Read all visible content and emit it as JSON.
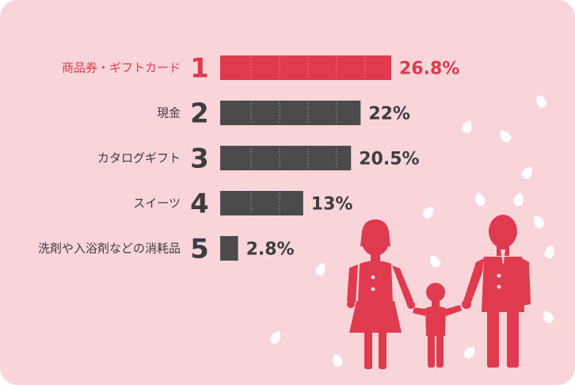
{
  "chart_data": {
    "type": "bar",
    "orientation": "horizontal",
    "categories": [
      "商品券・ギフトカード",
      "現金",
      "カタログギフト",
      "スイーツ",
      "洗剤や入浴剤などの消耗品"
    ],
    "ranks": [
      "1",
      "2",
      "3",
      "4",
      "5"
    ],
    "values": [
      26.8,
      22,
      20.5,
      13,
      2.8
    ],
    "value_labels": [
      "26.8%",
      "22%",
      "20.5%",
      "13%",
      "2.8%"
    ],
    "title": "",
    "xlabel": "",
    "ylabel": "",
    "xlim": [
      0,
      26.8
    ],
    "grid": false,
    "legend": "none"
  },
  "colors": {
    "background": "#f9d5d9",
    "highlight": "#e03a4f",
    "bar": "#4b4b4b",
    "text": "#3d3d3d",
    "petal": "#ffffff",
    "family": "#e03a4f"
  },
  "illustration": {
    "figures": [
      "woman-icon",
      "child-icon",
      "man-icon"
    ],
    "decoration": "cherry-blossom-petal-icon"
  }
}
